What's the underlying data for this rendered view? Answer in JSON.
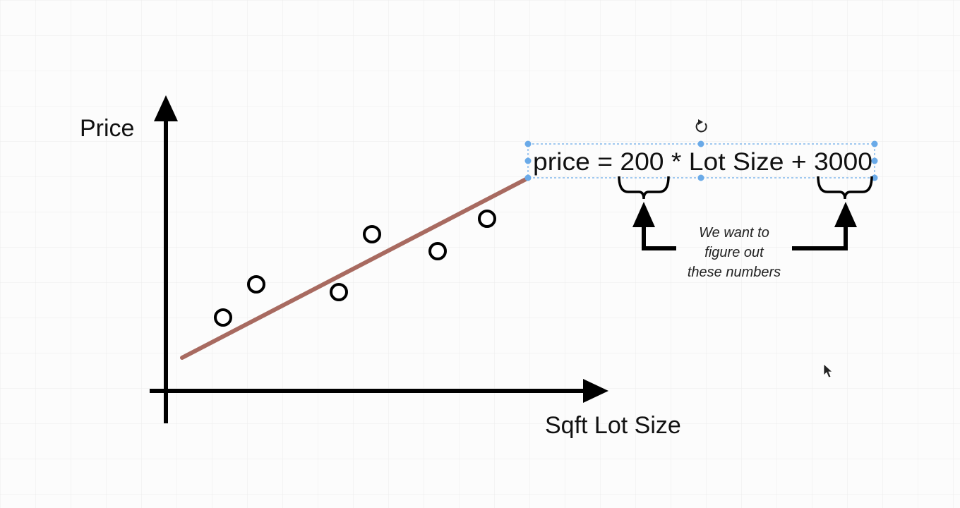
{
  "diagram": {
    "y_axis_label": "Price",
    "x_axis_label": "Sqft Lot Size",
    "formula": "price = 200 * Lot Size + 3000",
    "annotation_lines": [
      "We want to",
      "figure out",
      "these numbers"
    ],
    "colors": {
      "background": "#fcfcfc",
      "grid": "#ececec",
      "axes": "#000000",
      "fit_line": "#a86a60",
      "data_points": "#000000",
      "selection_handles": "#6aaae8"
    },
    "icons": [
      "rotate-icon",
      "mouse-cursor-icon"
    ]
  }
}
